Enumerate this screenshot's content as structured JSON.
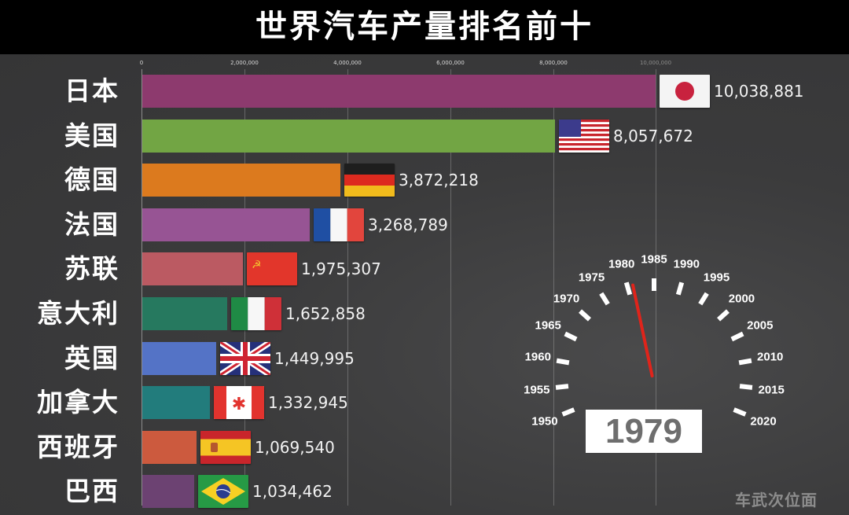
{
  "header": {
    "title": "世界汽车产量排名前十"
  },
  "axis": {
    "ticks": [
      {
        "label": "0",
        "x": 180
      },
      {
        "label": "2,000,000",
        "x": 311
      },
      {
        "label": "4,000,000",
        "x": 442
      },
      {
        "label": "6,000,000",
        "x": 573
      },
      {
        "label": "8,000,000",
        "x": 704
      },
      {
        "label": "10,000,000",
        "x": 834
      }
    ]
  },
  "rows": [
    {
      "label": "日本",
      "value": "10,038,881",
      "color": "#8d3a6e",
      "flag": "japan"
    },
    {
      "label": "美国",
      "value": "8,057,672",
      "color": "#72a544",
      "flag": "usa"
    },
    {
      "label": "德国",
      "value": "3,872,218",
      "color": "#dc7a1e",
      "flag": "germany"
    },
    {
      "label": "法国",
      "value": "3,268,789",
      "color": "#975494",
      "flag": "france"
    },
    {
      "label": "苏联",
      "value": "1,975,307",
      "color": "#bb5a62",
      "flag": "ussr"
    },
    {
      "label": "意大利",
      "value": "1,652,858",
      "color": "#26795f",
      "flag": "italy"
    },
    {
      "label": "英国",
      "value": "1,449,995",
      "color": "#5473c6",
      "flag": "uk"
    },
    {
      "label": "加拿大",
      "value": "1,332,945",
      "color": "#227c7c",
      "flag": "canada"
    },
    {
      "label": "西班牙",
      "value": "1,069,540",
      "color": "#cc5a3e",
      "flag": "spain"
    },
    {
      "label": "巴西",
      "value": "1,034,462",
      "color": "#6c4272",
      "flag": "brazil"
    }
  ],
  "gauge": {
    "current_year": "1979",
    "year_labels": [
      "1950",
      "1955",
      "1960",
      "1965",
      "1970",
      "1975",
      "1980",
      "1985",
      "1990",
      "1995",
      "2000",
      "2005",
      "2010",
      "2015",
      "2020"
    ]
  },
  "watermark": "车武次位面",
  "chart_data": {
    "type": "bar",
    "orientation": "horizontal",
    "title": "世界汽车产量排名前十",
    "categories": [
      "日本",
      "美国",
      "德国",
      "法国",
      "苏联",
      "意大利",
      "英国",
      "加拿大",
      "西班牙",
      "巴西"
    ],
    "values": [
      10038881,
      8057672,
      3872218,
      3268789,
      1975307,
      1652858,
      1449995,
      1332945,
      1069540,
      1034462
    ],
    "xlabel": "",
    "ylabel": "",
    "xlim": [
      0,
      10000000
    ],
    "xticks": [
      "0",
      "2,000,000",
      "4,000,000",
      "6,000,000",
      "8,000,000",
      "10,000,000"
    ],
    "grid": true,
    "annotation": "Year: 1979",
    "legend": "none"
  }
}
